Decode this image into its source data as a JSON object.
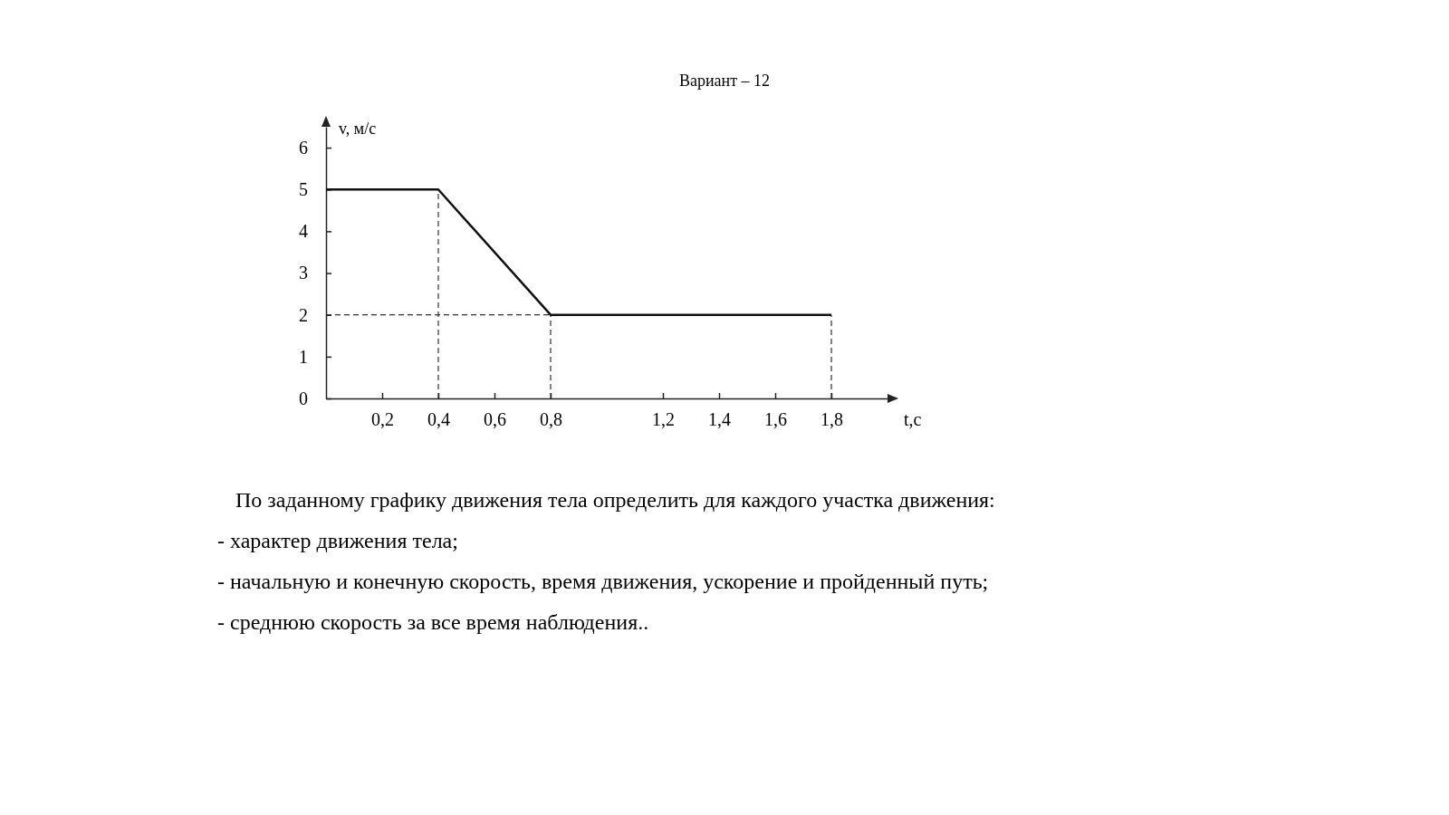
{
  "chart_data": {
    "type": "line",
    "title": "Вариант – 12",
    "xlabel": "t,c",
    "ylabel": "v, м/с",
    "series": [
      {
        "x": [
          0,
          0.4,
          0.8,
          1.8
        ],
        "values": [
          5,
          5,
          2,
          2
        ],
        "color": "#111111"
      }
    ],
    "xlim": [
      0,
      2
    ],
    "ylim": [
      0,
      6.5
    ],
    "xticks": [
      {
        "value": 0.2,
        "label": "0,2"
      },
      {
        "value": 0.4,
        "label": "0,4"
      },
      {
        "value": 0.6,
        "label": "0,6"
      },
      {
        "value": 0.8,
        "label": "0,8"
      },
      {
        "value": 1.2,
        "label": "1,2"
      },
      {
        "value": 1.4,
        "label": "1,4"
      },
      {
        "value": 1.6,
        "label": "1,6"
      },
      {
        "value": 1.8,
        "label": "1,8"
      }
    ],
    "yticks": [
      0,
      1,
      2,
      3,
      4,
      5,
      6
    ],
    "ref_lines": [
      {
        "axis": "x",
        "value": 0.4,
        "line_style": "dashed"
      },
      {
        "axis": "x",
        "value": 0.8,
        "line_style": "dashed"
      },
      {
        "axis": "x",
        "value": 1.8,
        "line_style": "dashed"
      },
      {
        "axis": "y",
        "value": 2,
        "line_style": "dashed"
      }
    ],
    "grid": false,
    "marker": "none",
    "line_style": "solid",
    "annotations": [
      "По заданному графику движения тела определить для каждого участка движения:",
      "- характер движения тела;",
      "- начальную и конечную скорость, время движения, ускорение и пройденный путь;",
      "- среднюю скорость за все время наблюдения.."
    ]
  }
}
